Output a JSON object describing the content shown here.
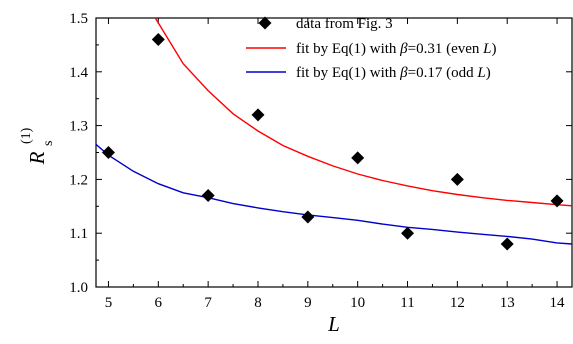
{
  "chart_data": {
    "type": "scatter",
    "xlabel": "L",
    "ylabel": "R_s^(1)",
    "ylabel_main": "R",
    "ylabel_sub": "s",
    "ylabel_sup": "(1)",
    "xlim": [
      4.75,
      14.3
    ],
    "ylim": [
      1.0,
      1.5
    ],
    "xticks": [
      5,
      6,
      7,
      8,
      9,
      10,
      11,
      12,
      13,
      14
    ],
    "yticks": [
      "1.0",
      "1.1",
      "1.2",
      "1.3",
      "1.4",
      "1.5"
    ],
    "grid": false,
    "legend_position": "top-right",
    "series": [
      {
        "name": "data from Fig. 3",
        "kind": "scatter",
        "marker": "diamond",
        "color": "#000000",
        "x": [
          5,
          6,
          7,
          8,
          9,
          10,
          11,
          12,
          13,
          14
        ],
        "y": [
          1.25,
          1.46,
          1.17,
          1.32,
          1.13,
          1.24,
          1.1,
          1.2,
          1.08,
          1.16
        ]
      },
      {
        "name_parts": [
          "fit by Eq(1) with ",
          "β",
          "=0.31 (even ",
          "L",
          ")"
        ],
        "kind": "line",
        "color": "#ff0000",
        "x": [
          5.94,
          6.5,
          7,
          7.5,
          8,
          8.5,
          9,
          9.5,
          10,
          10.5,
          11,
          11.5,
          12,
          12.5,
          13,
          13.5,
          14,
          14.3
        ],
        "y": [
          1.5,
          1.415,
          1.365,
          1.322,
          1.29,
          1.263,
          1.243,
          1.225,
          1.21,
          1.198,
          1.188,
          1.179,
          1.172,
          1.166,
          1.161,
          1.157,
          1.153,
          1.151
        ]
      },
      {
        "name_parts": [
          "fit by Eq(1) with ",
          "β",
          "=0.17 (odd ",
          "L",
          ")"
        ],
        "kind": "line",
        "color": "#0000cc",
        "x": [
          4.75,
          5,
          5.5,
          6,
          6.5,
          7,
          7.5,
          8,
          8.5,
          9,
          9.5,
          10,
          10.5,
          11,
          11.5,
          12,
          12.5,
          13,
          13.5,
          14,
          14.3
        ],
        "y": [
          1.265,
          1.245,
          1.215,
          1.192,
          1.175,
          1.166,
          1.155,
          1.147,
          1.14,
          1.134,
          1.129,
          1.124,
          1.117,
          1.111,
          1.107,
          1.102,
          1.098,
          1.094,
          1.089,
          1.082,
          1.08
        ]
      }
    ]
  }
}
